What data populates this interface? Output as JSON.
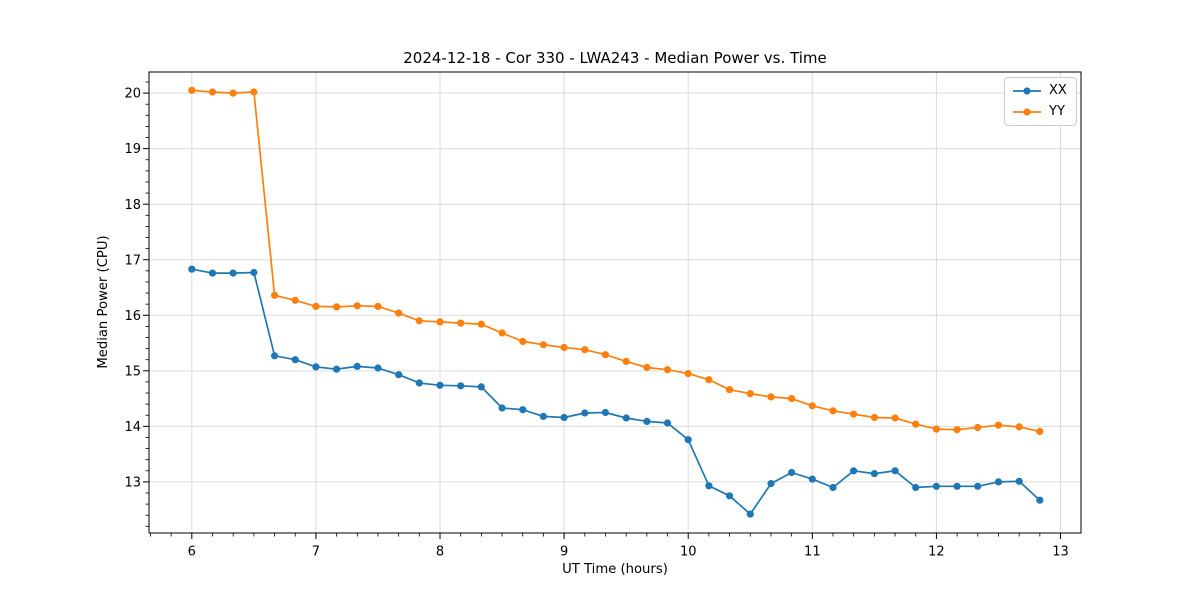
{
  "chart_data": {
    "type": "line",
    "title": "2024-12-18 - Cor 330 - LWA243 - Median Power vs. Time",
    "xlabel": "UT Time (hours)",
    "ylabel": "Median Power (CPU)",
    "xlim": [
      5.655,
      13.165
    ],
    "ylim": [
      12.08,
      20.38
    ],
    "xticks": [
      6,
      7,
      8,
      9,
      10,
      11,
      12,
      13
    ],
    "yticks": [
      13,
      14,
      15,
      16,
      17,
      18,
      19,
      20
    ],
    "x_minor_step": 0.16667,
    "y_minor_step": 0.2,
    "grid": true,
    "legend_position": "top-right",
    "x": [
      6.0,
      6.167,
      6.333,
      6.5,
      6.667,
      6.833,
      7.0,
      7.167,
      7.333,
      7.5,
      7.667,
      7.833,
      8.0,
      8.167,
      8.333,
      8.5,
      8.667,
      8.833,
      9.0,
      9.167,
      9.333,
      9.5,
      9.667,
      9.833,
      10.0,
      10.167,
      10.333,
      10.5,
      10.667,
      10.833,
      11.0,
      11.167,
      11.333,
      11.5,
      11.667,
      11.833,
      12.0,
      12.167,
      12.333,
      12.5,
      12.667,
      12.833
    ],
    "series": [
      {
        "name": "XX",
        "color": "#1f77b4",
        "values": [
          16.83,
          16.76,
          16.76,
          16.77,
          15.27,
          15.2,
          15.07,
          15.03,
          15.08,
          15.05,
          14.93,
          14.78,
          14.74,
          14.73,
          14.71,
          14.33,
          14.3,
          14.18,
          14.16,
          14.24,
          14.25,
          14.15,
          14.09,
          14.06,
          13.76,
          12.93,
          12.75,
          12.42,
          12.97,
          13.17,
          13.05,
          12.9,
          13.2,
          13.15,
          13.2,
          12.9,
          12.92,
          12.92,
          12.92,
          13.0,
          13.01,
          12.67
        ]
      },
      {
        "name": "YY",
        "color": "#ff7f0e",
        "values": [
          20.05,
          20.02,
          20.0,
          20.02,
          16.36,
          16.27,
          16.16,
          16.15,
          16.17,
          16.16,
          16.04,
          15.9,
          15.88,
          15.86,
          15.84,
          15.68,
          15.53,
          15.47,
          15.42,
          15.38,
          15.29,
          15.17,
          15.06,
          15.02,
          14.95,
          14.84,
          14.66,
          14.59,
          14.53,
          14.5,
          14.37,
          14.28,
          14.22,
          14.16,
          14.15,
          14.04,
          13.95,
          13.94,
          13.98,
          14.02,
          13.99,
          13.91
        ]
      }
    ]
  },
  "style": {
    "grid_color": "#dcdcdc",
    "spine_color": "#000000",
    "tick_color": "#000000",
    "background": "#ffffff"
  }
}
